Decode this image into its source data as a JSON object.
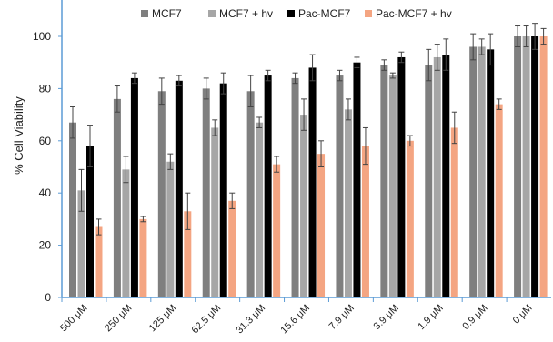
{
  "chart_data": {
    "type": "bar",
    "title": "",
    "xlabel": "",
    "ylabel": "% Cell Viability",
    "ylim": [
      0,
      120
    ],
    "yticks": [
      0,
      20,
      40,
      60,
      80,
      100
    ],
    "grid": false,
    "legend_position": "top",
    "error_bars": true,
    "categories": [
      "500 μM",
      "250 μM",
      "125 μM",
      "62.5 μM",
      "31.3 μM",
      "15.6 μM",
      "7.9 μM",
      "3.9 μM",
      "1.9 μM",
      "0.9 μM",
      "0 μM"
    ],
    "series": [
      {
        "name": "MCF7",
        "color": "#7f7f7f",
        "values": [
          67,
          76,
          79,
          80,
          79,
          84,
          85,
          89,
          89,
          96,
          100
        ],
        "errors": [
          6,
          5,
          5,
          4,
          6,
          2,
          2,
          2,
          6,
          5,
          4
        ]
      },
      {
        "name": "MCF7 + hv",
        "color": "#a6a6a6",
        "values": [
          41,
          49,
          52,
          65,
          67,
          70,
          72,
          85,
          92,
          96,
          100
        ],
        "errors": [
          8,
          5,
          3,
          3,
          2,
          6,
          4,
          1,
          5,
          3,
          4
        ]
      },
      {
        "name": "Pac-MCF7",
        "color": "#000000",
        "values": [
          58,
          84,
          83,
          82,
          85,
          88,
          90,
          92,
          93,
          95,
          100
        ],
        "errors": [
          8,
          2,
          2,
          4,
          2,
          5,
          2,
          2,
          6,
          6,
          5
        ]
      },
      {
        "name": "Pac-MCF7 + hv",
        "color": "#f4a582",
        "values": [
          27,
          30,
          33,
          37,
          51,
          55,
          58,
          60,
          65,
          74,
          100
        ],
        "errors": [
          3,
          1,
          7,
          3,
          3,
          5,
          7,
          2,
          6,
          2,
          3
        ]
      }
    ]
  }
}
